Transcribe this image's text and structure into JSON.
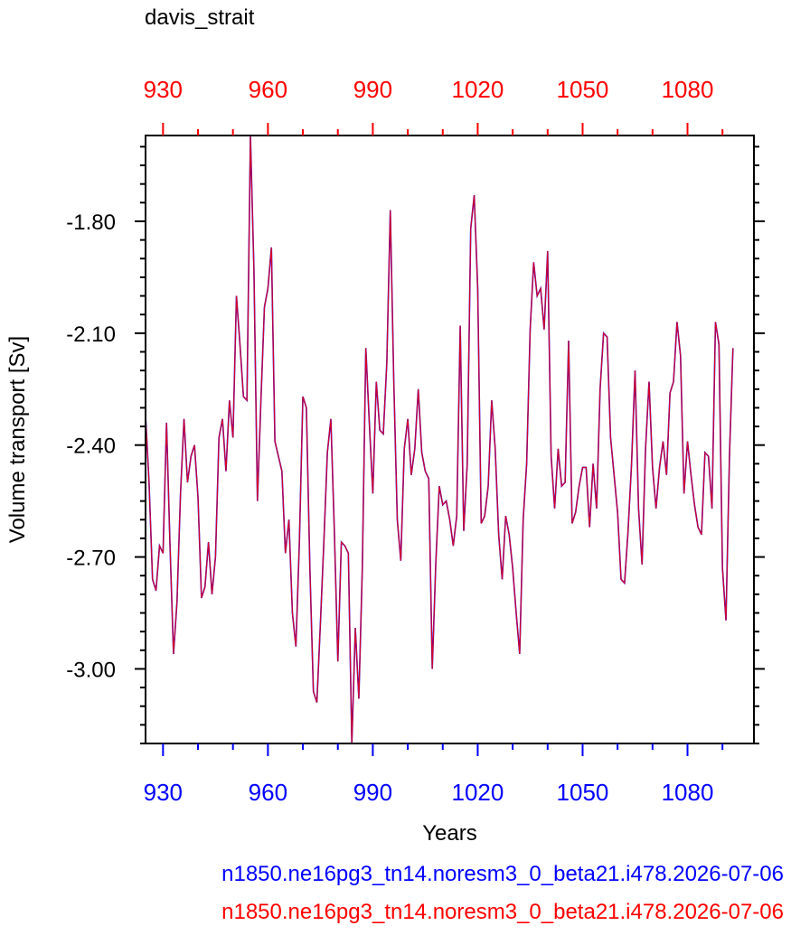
{
  "chart_data": {
    "type": "line",
    "title": "davis_strait",
    "xlabel": "Years",
    "ylabel": "Volume transport [Sv]",
    "xlim": [
      925,
      1099
    ],
    "ylim": [
      -3.2,
      -1.57
    ],
    "x_ticks": [
      "930",
      "960",
      "990",
      "1020",
      "1050",
      "1080"
    ],
    "x_tick_values": [
      930,
      960,
      990,
      1020,
      1050,
      1080
    ],
    "y_ticks": [
      "-1.80",
      "-2.10",
      "-2.40",
      "-2.70",
      "-3.00"
    ],
    "y_tick_values": [
      -1.8,
      -2.1,
      -2.4,
      -2.7,
      -3.0
    ],
    "grid": false,
    "colors": {
      "bottom_axis": "#0000ff",
      "top_axis": "#ff0000",
      "line_a": "#0000ff",
      "line_b": "#ff0000"
    },
    "series": [
      {
        "name": "n1850.ne16pg3_tn14.noresm3_0_beta21.i478.2026-07-06",
        "color": "#0000ff",
        "x_start": 925,
        "x_step": 1,
        "values": [
          -2.32,
          -2.5,
          -2.76,
          -2.79,
          -2.67,
          -2.69,
          -2.34,
          -2.67,
          -2.96,
          -2.82,
          -2.53,
          -2.33,
          -2.5,
          -2.43,
          -2.4,
          -2.54,
          -2.81,
          -2.78,
          -2.66,
          -2.8,
          -2.7,
          -2.38,
          -2.33,
          -2.47,
          -2.28,
          -2.38,
          -2.0,
          -2.13,
          -2.27,
          -2.28,
          -1.57,
          -1.93,
          -2.55,
          -2.28,
          -2.03,
          -1.98,
          -1.87,
          -2.39,
          -2.43,
          -2.47,
          -2.69,
          -2.6,
          -2.85,
          -2.94,
          -2.66,
          -2.27,
          -2.3,
          -2.73,
          -3.06,
          -3.09,
          -2.88,
          -2.66,
          -2.42,
          -2.33,
          -2.63,
          -2.98,
          -2.66,
          -2.67,
          -2.69,
          -3.2,
          -2.89,
          -3.08,
          -2.73,
          -2.14,
          -2.34,
          -2.53,
          -2.23,
          -2.36,
          -2.37,
          -2.18,
          -1.77,
          -2.23,
          -2.6,
          -2.71,
          -2.41,
          -2.33,
          -2.48,
          -2.41,
          -2.25,
          -2.42,
          -2.47,
          -2.49,
          -3.0,
          -2.72,
          -2.51,
          -2.56,
          -2.55,
          -2.6,
          -2.67,
          -2.59,
          -2.08,
          -2.63,
          -2.45,
          -1.82,
          -1.73,
          -1.98,
          -2.61,
          -2.59,
          -2.51,
          -2.28,
          -2.41,
          -2.64,
          -2.76,
          -2.59,
          -2.64,
          -2.73,
          -2.85,
          -2.96,
          -2.6,
          -2.45,
          -2.09,
          -1.91,
          -2.0,
          -1.98,
          -2.09,
          -1.88,
          -2.43,
          -2.57,
          -2.41,
          -2.51,
          -2.5,
          -2.12,
          -2.61,
          -2.58,
          -2.51,
          -2.46,
          -2.46,
          -2.62,
          -2.45,
          -2.57,
          -2.25,
          -2.1,
          -2.11,
          -2.38,
          -2.48,
          -2.58,
          -2.76,
          -2.77,
          -2.63,
          -2.45,
          -2.2,
          -2.57,
          -2.72,
          -2.41,
          -2.23,
          -2.46,
          -2.57,
          -2.46,
          -2.39,
          -2.48,
          -2.26,
          -2.23,
          -2.07,
          -2.16,
          -2.53,
          -2.39,
          -2.48,
          -2.56,
          -2.62,
          -2.64,
          -2.42,
          -2.43,
          -2.57,
          -2.07,
          -2.13,
          -2.73,
          -2.87,
          -2.43,
          -2.14
        ]
      },
      {
        "name": "n1850.ne16pg3_tn14.noresm3_0_beta21.i478.2026-07-06",
        "color": "#ff0000",
        "x_start": 925,
        "x_step": 1,
        "same_values_as_series": 0
      }
    ]
  }
}
